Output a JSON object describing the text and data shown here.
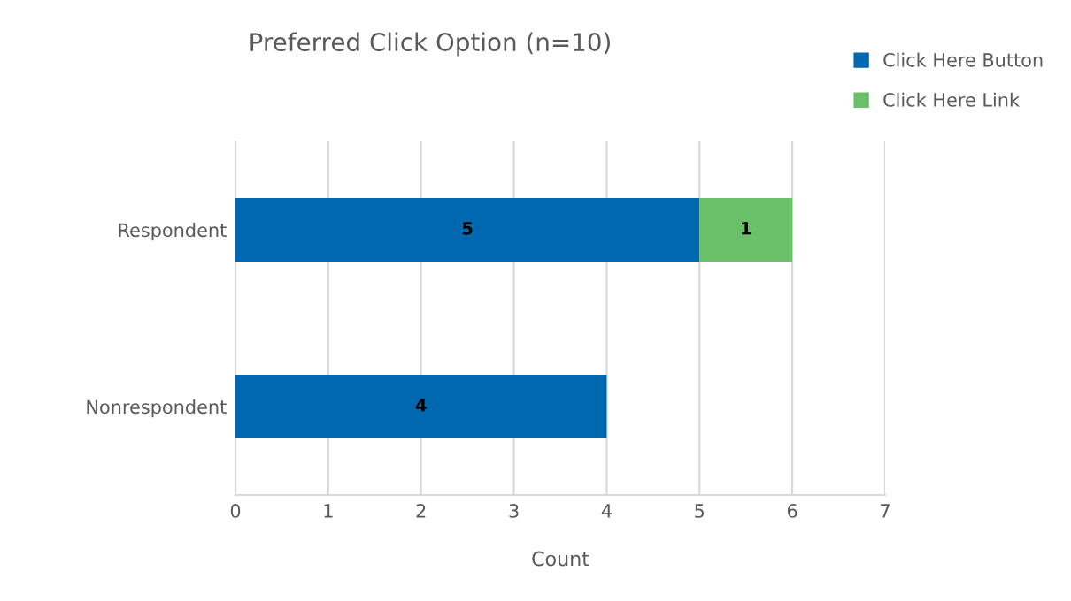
{
  "chart_data": {
    "type": "bar",
    "orientation": "horizontal",
    "stacked": true,
    "title": "Preferred Click Option (n=10)",
    "xlabel": "Count",
    "categories": [
      "Respondent",
      "Nonrespondent"
    ],
    "series": [
      {
        "name": "Click Here Button",
        "color": "#0068b0",
        "values": [
          5,
          4
        ],
        "value_labels": [
          "5",
          "4"
        ]
      },
      {
        "name": "Click Here Link",
        "color": "#6abf69",
        "values": [
          1,
          null
        ],
        "value_labels": [
          "1",
          null
        ]
      }
    ],
    "xlim": [
      0,
      7
    ],
    "xticks": [
      0,
      1,
      2,
      3,
      4,
      5,
      6,
      7
    ],
    "grid": "x",
    "legend": "top right"
  }
}
